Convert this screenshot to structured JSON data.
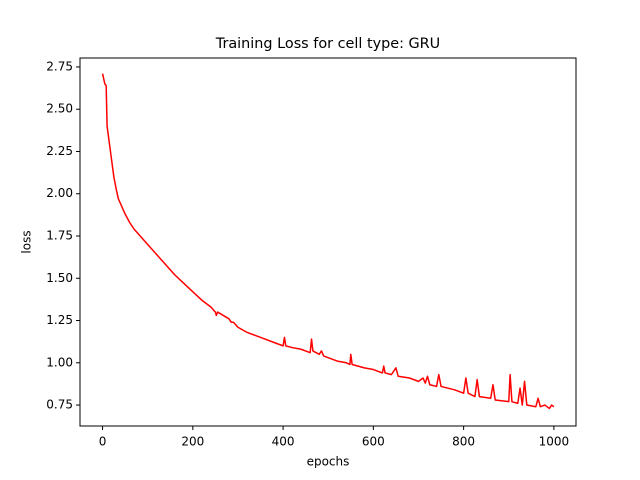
{
  "chart_data": {
    "type": "line",
    "title": "Training Loss for cell type: GRU",
    "xlabel": "epochs",
    "ylabel": "loss",
    "color": "#ff0000",
    "grid": false,
    "x": [
      0,
      5,
      8,
      10,
      15,
      20,
      25,
      30,
      35,
      40,
      50,
      60,
      70,
      80,
      100,
      120,
      140,
      160,
      180,
      200,
      220,
      240,
      250,
      252,
      255,
      280,
      285,
      290,
      300,
      320,
      340,
      360,
      380,
      400,
      403,
      406,
      420,
      440,
      460,
      463,
      466,
      480,
      485,
      490,
      500,
      520,
      540,
      548,
      550,
      553,
      580,
      600,
      620,
      623,
      626,
      640,
      650,
      655,
      680,
      700,
      710,
      715,
      720,
      725,
      740,
      745,
      750,
      780,
      800,
      805,
      810,
      825,
      830,
      835,
      860,
      865,
      870,
      900,
      903,
      907,
      920,
      925,
      930,
      935,
      940,
      960,
      965,
      970,
      980,
      990,
      995,
      1000
    ],
    "values": [
      2.71,
      2.65,
      2.64,
      2.4,
      2.3,
      2.2,
      2.1,
      2.03,
      1.97,
      1.94,
      1.88,
      1.83,
      1.79,
      1.76,
      1.7,
      1.64,
      1.58,
      1.52,
      1.47,
      1.42,
      1.37,
      1.33,
      1.3,
      1.28,
      1.3,
      1.26,
      1.24,
      1.24,
      1.21,
      1.18,
      1.16,
      1.14,
      1.12,
      1.1,
      1.15,
      1.1,
      1.09,
      1.08,
      1.06,
      1.14,
      1.07,
      1.05,
      1.07,
      1.04,
      1.03,
      1.01,
      1.0,
      0.99,
      1.05,
      0.99,
      0.97,
      0.96,
      0.94,
      0.98,
      0.94,
      0.93,
      0.97,
      0.92,
      0.91,
      0.89,
      0.91,
      0.88,
      0.92,
      0.87,
      0.86,
      0.93,
      0.86,
      0.84,
      0.82,
      0.91,
      0.82,
      0.8,
      0.9,
      0.8,
      0.79,
      0.87,
      0.78,
      0.77,
      0.93,
      0.77,
      0.76,
      0.85,
      0.75,
      0.89,
      0.75,
      0.74,
      0.79,
      0.74,
      0.75,
      0.73,
      0.75,
      0.74
    ],
    "xlim": [
      -50,
      1049
    ],
    "ylim": [
      0.626,
      2.803
    ],
    "xticks": [
      0,
      200,
      400,
      600,
      800,
      1000
    ],
    "yticks": [
      0.75,
      {
        "value": 1,
        "label": "1.00"
      },
      1.25,
      {
        "value": 1.5,
        "label": "1.50"
      },
      1.75,
      {
        "value": 2,
        "label": "2.00"
      },
      2.25,
      {
        "value": 2.5,
        "label": "2.50"
      },
      2.75
    ]
  }
}
